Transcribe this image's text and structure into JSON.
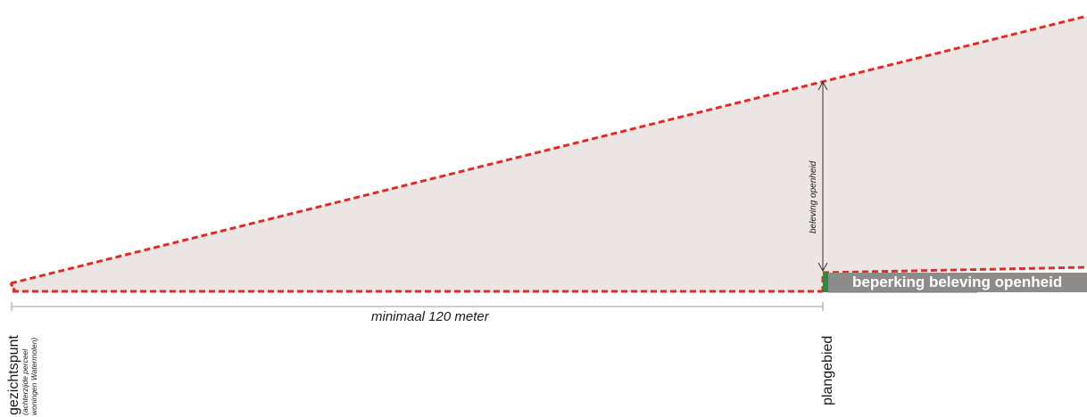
{
  "diagram": {
    "measure_label": "minimaal 120 meter",
    "viewpoint_label": "gezichtspunt",
    "viewpoint_sub_1": "(achterzijde perceel",
    "viewpoint_sub_2": "woningen Watermolen)",
    "plan_area_label": "plangebied",
    "openness_label": "beleving openheid",
    "limitation_label": "beperking beleving openheid"
  },
  "colors": {
    "fill": "#ebe6e3",
    "dashed_outline": "#e02b26",
    "bar": "#8e8c8a",
    "green_marker": "#2f8a3a",
    "measure_line": "#9a9a9a",
    "text": "#1a1a1a",
    "bar_text": "#ffffff"
  }
}
